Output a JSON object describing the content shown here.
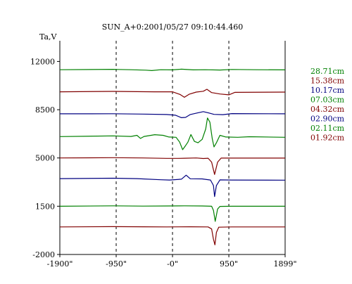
{
  "chart_data": {
    "type": "line",
    "title": "SUN_A+0:2001/05/27 09:10:44.460",
    "ylabel": "Ta,V",
    "xlabel": "",
    "xlim": [
      -1900,
      1899
    ],
    "ylim": [
      -2000,
      13500
    ],
    "x_ticks": [
      {
        "value": -1900,
        "label": "-1900\""
      },
      {
        "value": -950,
        "label": "-950\""
      },
      {
        "value": 0,
        "label": "-0\""
      },
      {
        "value": 950,
        "label": "950\""
      },
      {
        "value": 1899,
        "label": "1899\""
      }
    ],
    "y_ticks": [
      {
        "value": 12000,
        "label": "12000"
      },
      {
        "value": 8500,
        "label": "8500"
      },
      {
        "value": 5000,
        "label": "5000"
      },
      {
        "value": 1500,
        "label": "1500"
      },
      {
        "value": -2000,
        "label": "-2000"
      }
    ],
    "vertical_dashed_lines_at": [
      -950,
      0,
      950
    ],
    "grid": false,
    "legend_position": "right",
    "series": [
      {
        "name": "28.71cm",
        "color": "#008000",
        "points": [
          [
            -1900,
            11400
          ],
          [
            -1000,
            11430
          ],
          [
            -920,
            11420
          ],
          [
            -700,
            11400
          ],
          [
            -450,
            11370
          ],
          [
            -350,
            11340
          ],
          [
            -200,
            11400
          ],
          [
            0,
            11390
          ],
          [
            150,
            11440
          ],
          [
            350,
            11390
          ],
          [
            550,
            11400
          ],
          [
            800,
            11380
          ],
          [
            1000,
            11420
          ],
          [
            1400,
            11400
          ],
          [
            1899,
            11390
          ]
        ]
      },
      {
        "name": "15.38cm",
        "color": "#800000",
        "points": [
          [
            -1900,
            9800
          ],
          [
            -1000,
            9830
          ],
          [
            -600,
            9810
          ],
          [
            -300,
            9800
          ],
          [
            0,
            9800
          ],
          [
            130,
            9600
          ],
          [
            200,
            9400
          ],
          [
            280,
            9620
          ],
          [
            400,
            9780
          ],
          [
            520,
            9840
          ],
          [
            580,
            9980
          ],
          [
            660,
            9740
          ],
          [
            800,
            9640
          ],
          [
            950,
            9580
          ],
          [
            1050,
            9760
          ],
          [
            1899,
            9780
          ]
        ]
      },
      {
        "name": "10.17cm",
        "color": "#000080",
        "points": [
          [
            -1900,
            8200
          ],
          [
            -1000,
            8210
          ],
          [
            -500,
            8180
          ],
          [
            -100,
            8150
          ],
          [
            50,
            8100
          ],
          [
            150,
            7920
          ],
          [
            220,
            7940
          ],
          [
            300,
            8150
          ],
          [
            430,
            8280
          ],
          [
            520,
            8360
          ],
          [
            600,
            8280
          ],
          [
            700,
            8160
          ],
          [
            850,
            8140
          ],
          [
            1000,
            8220
          ],
          [
            1899,
            8200
          ]
        ]
      },
      {
        "name": "07.03cm",
        "color": "#008000",
        "points": [
          [
            -1900,
            6550
          ],
          [
            -1000,
            6600
          ],
          [
            -700,
            6560
          ],
          [
            -600,
            6640
          ],
          [
            -540,
            6420
          ],
          [
            -480,
            6560
          ],
          [
            -300,
            6690
          ],
          [
            -160,
            6640
          ],
          [
            -60,
            6520
          ],
          [
            60,
            6500
          ],
          [
            120,
            6150
          ],
          [
            170,
            5600
          ],
          [
            220,
            5900
          ],
          [
            260,
            6150
          ],
          [
            310,
            6700
          ],
          [
            370,
            6200
          ],
          [
            430,
            6100
          ],
          [
            500,
            6350
          ],
          [
            560,
            7100
          ],
          [
            590,
            7900
          ],
          [
            630,
            7600
          ],
          [
            670,
            6400
          ],
          [
            700,
            5800
          ],
          [
            740,
            6100
          ],
          [
            800,
            6640
          ],
          [
            900,
            6520
          ],
          [
            1100,
            6500
          ],
          [
            1300,
            6540
          ],
          [
            1899,
            6500
          ]
        ]
      },
      {
        "name": "04.32cm",
        "color": "#800000",
        "points": [
          [
            -1900,
            5000
          ],
          [
            -1000,
            5020
          ],
          [
            -500,
            5000
          ],
          [
            -100,
            4970
          ],
          [
            100,
            4970
          ],
          [
            200,
            4980
          ],
          [
            400,
            5000
          ],
          [
            520,
            4960
          ],
          [
            600,
            4980
          ],
          [
            660,
            4700
          ],
          [
            710,
            3800
          ],
          [
            760,
            4700
          ],
          [
            820,
            4990
          ],
          [
            1000,
            4990
          ],
          [
            1899,
            4990
          ]
        ]
      },
      {
        "name": "02.90cm",
        "color": "#000080",
        "points": [
          [
            -1900,
            3500
          ],
          [
            -1000,
            3530
          ],
          [
            -600,
            3500
          ],
          [
            -200,
            3420
          ],
          [
            -50,
            3400
          ],
          [
            150,
            3460
          ],
          [
            230,
            3750
          ],
          [
            300,
            3490
          ],
          [
            500,
            3480
          ],
          [
            640,
            3400
          ],
          [
            690,
            3000
          ],
          [
            710,
            2200
          ],
          [
            740,
            3000
          ],
          [
            800,
            3410
          ],
          [
            1000,
            3400
          ],
          [
            1899,
            3390
          ]
        ]
      },
      {
        "name": "02.11cm",
        "color": "#008000",
        "points": [
          [
            -1900,
            1500
          ],
          [
            -1000,
            1530
          ],
          [
            -500,
            1510
          ],
          [
            -100,
            1520
          ],
          [
            200,
            1530
          ],
          [
            500,
            1520
          ],
          [
            660,
            1500
          ],
          [
            690,
            1200
          ],
          [
            720,
            400
          ],
          [
            760,
            1300
          ],
          [
            800,
            1490
          ],
          [
            1000,
            1500
          ],
          [
            1899,
            1500
          ]
        ]
      },
      {
        "name": "01.92cm",
        "color": "#800000",
        "points": [
          [
            -1900,
            0
          ],
          [
            -1000,
            20
          ],
          [
            -500,
            10
          ],
          [
            -100,
            0
          ],
          [
            300,
            10
          ],
          [
            600,
            0
          ],
          [
            660,
            -150
          ],
          [
            690,
            -900
          ],
          [
            715,
            -1300
          ],
          [
            740,
            -400
          ],
          [
            780,
            -20
          ],
          [
            1000,
            0
          ],
          [
            1899,
            0
          ]
        ]
      }
    ]
  }
}
